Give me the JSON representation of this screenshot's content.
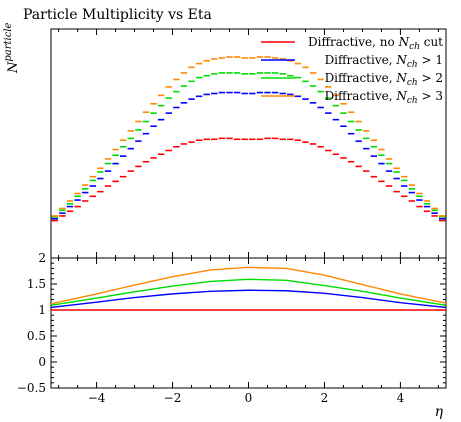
{
  "title": "Particle Multiplicity vs Eta",
  "chart_data": [
    {
      "type": "line",
      "panel": "main",
      "ylabel_base": "N",
      "ylabel_sup": "particle",
      "xlim": [
        -5.2,
        5.2
      ],
      "y_ticks_shown": false,
      "legend_placement": "top-right",
      "x": [
        -5.1,
        -4.9,
        -4.7,
        -4.5,
        -4.3,
        -4.1,
        -3.9,
        -3.7,
        -3.5,
        -3.3,
        -3.1,
        -2.9,
        -2.7,
        -2.5,
        -2.3,
        -2.1,
        -1.9,
        -1.7,
        -1.5,
        -1.3,
        -1.1,
        -0.9,
        -0.7,
        -0.5,
        -0.3,
        -0.1,
        0.1,
        0.3,
        0.5,
        0.7,
        0.9,
        1.1,
        1.3,
        1.5,
        1.7,
        1.9,
        2.1,
        2.3,
        2.5,
        2.7,
        2.9,
        3.1,
        3.3,
        3.5,
        3.7,
        3.9,
        4.1,
        4.3,
        4.5,
        4.7,
        4.9,
        5.1
      ],
      "series": [
        {
          "name": "Diffractive, no N_ch cut",
          "legend_parts": [
            "Diffractive, no ",
            "N",
            "ch",
            " cut"
          ],
          "color": "#ff0000",
          "values": [
            0.4,
            0.45,
            0.5,
            0.55,
            0.61,
            0.66,
            0.71,
            0.77,
            0.82,
            0.87,
            0.93,
            0.98,
            1.03,
            1.07,
            1.11,
            1.15,
            1.19,
            1.22,
            1.24,
            1.26,
            1.27,
            1.27,
            1.28,
            1.28,
            1.27,
            1.27,
            1.27,
            1.27,
            1.28,
            1.28,
            1.27,
            1.27,
            1.26,
            1.24,
            1.22,
            1.19,
            1.15,
            1.11,
            1.07,
            1.03,
            0.98,
            0.93,
            0.87,
            0.82,
            0.77,
            0.71,
            0.66,
            0.61,
            0.55,
            0.5,
            0.45,
            0.4
          ]
        },
        {
          "name": "Diffractive, N_ch > 1",
          "legend_parts": [
            "Diffractive, ",
            "N",
            "ch",
            " > 1"
          ],
          "color": "#0000ff",
          "values": [
            0.42,
            0.48,
            0.55,
            0.62,
            0.7,
            0.77,
            0.85,
            0.93,
            1.01,
            1.09,
            1.17,
            1.25,
            1.33,
            1.41,
            1.48,
            1.55,
            1.61,
            1.66,
            1.7,
            1.73,
            1.75,
            1.76,
            1.77,
            1.77,
            1.77,
            1.76,
            1.76,
            1.77,
            1.77,
            1.77,
            1.76,
            1.75,
            1.73,
            1.7,
            1.66,
            1.61,
            1.55,
            1.48,
            1.41,
            1.33,
            1.25,
            1.17,
            1.09,
            1.01,
            0.93,
            0.85,
            0.77,
            0.7,
            0.62,
            0.55,
            0.48,
            0.42
          ]
        },
        {
          "name": "Diffractive, N_ch > 2",
          "legend_parts": [
            "Diffractive, ",
            "N",
            "ch",
            " > 2"
          ],
          "color": "#00dd00",
          "values": [
            0.44,
            0.51,
            0.58,
            0.66,
            0.74,
            0.83,
            0.92,
            1.01,
            1.1,
            1.19,
            1.28,
            1.37,
            1.46,
            1.55,
            1.63,
            1.71,
            1.78,
            1.84,
            1.89,
            1.93,
            1.95,
            1.97,
            1.98,
            1.98,
            1.98,
            1.97,
            1.97,
            1.98,
            1.98,
            1.98,
            1.97,
            1.95,
            1.93,
            1.89,
            1.84,
            1.78,
            1.71,
            1.63,
            1.55,
            1.46,
            1.37,
            1.28,
            1.19,
            1.1,
            1.01,
            0.92,
            0.83,
            0.74,
            0.66,
            0.58,
            0.51,
            0.44
          ]
        },
        {
          "name": "Diffractive, N_ch > 3",
          "legend_parts": [
            "Diffractive, ",
            "N",
            "ch",
            " > 3"
          ],
          "color": "#ff8800",
          "values": [
            0.45,
            0.53,
            0.61,
            0.69,
            0.78,
            0.87,
            0.96,
            1.06,
            1.16,
            1.26,
            1.36,
            1.46,
            1.56,
            1.65,
            1.74,
            1.83,
            1.91,
            1.98,
            2.04,
            2.08,
            2.11,
            2.13,
            2.14,
            2.15,
            2.15,
            2.14,
            2.14,
            2.15,
            2.15,
            2.14,
            2.13,
            2.11,
            2.08,
            2.04,
            1.98,
            1.91,
            1.83,
            1.74,
            1.65,
            1.56,
            1.46,
            1.36,
            1.26,
            1.16,
            1.06,
            0.96,
            0.87,
            0.78,
            0.69,
            0.61,
            0.53,
            0.45
          ]
        }
      ]
    },
    {
      "type": "line",
      "panel": "ratio",
      "xlabel": "η",
      "xlim": [
        -5.2,
        5.2
      ],
      "ylim": [
        -0.5,
        2.0
      ],
      "x_ticks": [
        -4,
        -2,
        0,
        2,
        4
      ],
      "x_tick_labels": [
        "−4",
        "−2",
        "0",
        "2",
        "4"
      ],
      "y_ticks": [
        -0.5,
        0,
        0.5,
        1,
        1.5,
        2
      ],
      "y_tick_labels": [
        "−0.5",
        "0",
        "0.5",
        "1",
        "1.5",
        "2"
      ],
      "grid": false,
      "x": [
        -5.2,
        -4,
        -3,
        -2,
        -1,
        0,
        1,
        2,
        3,
        4,
        5.2
      ],
      "series": [
        {
          "name": "Diffractive, no N_ch cut",
          "color": "#ff0000",
          "values": [
            1,
            1,
            1,
            1,
            1,
            1,
            1,
            1,
            1,
            1,
            1
          ]
        },
        {
          "name": "Diffractive, N_ch > 1",
          "color": "#0000ff",
          "values": [
            1.05,
            1.15,
            1.24,
            1.31,
            1.36,
            1.38,
            1.37,
            1.32,
            1.24,
            1.14,
            1.05
          ]
        },
        {
          "name": "Diffractive, N_ch > 2",
          "color": "#00dd00",
          "values": [
            1.09,
            1.23,
            1.35,
            1.46,
            1.55,
            1.59,
            1.57,
            1.47,
            1.36,
            1.23,
            1.09
          ]
        },
        {
          "name": "Diffractive, N_ch > 3",
          "color": "#ff8800",
          "values": [
            1.12,
            1.31,
            1.48,
            1.64,
            1.77,
            1.82,
            1.8,
            1.67,
            1.49,
            1.31,
            1.13
          ]
        }
      ]
    }
  ]
}
